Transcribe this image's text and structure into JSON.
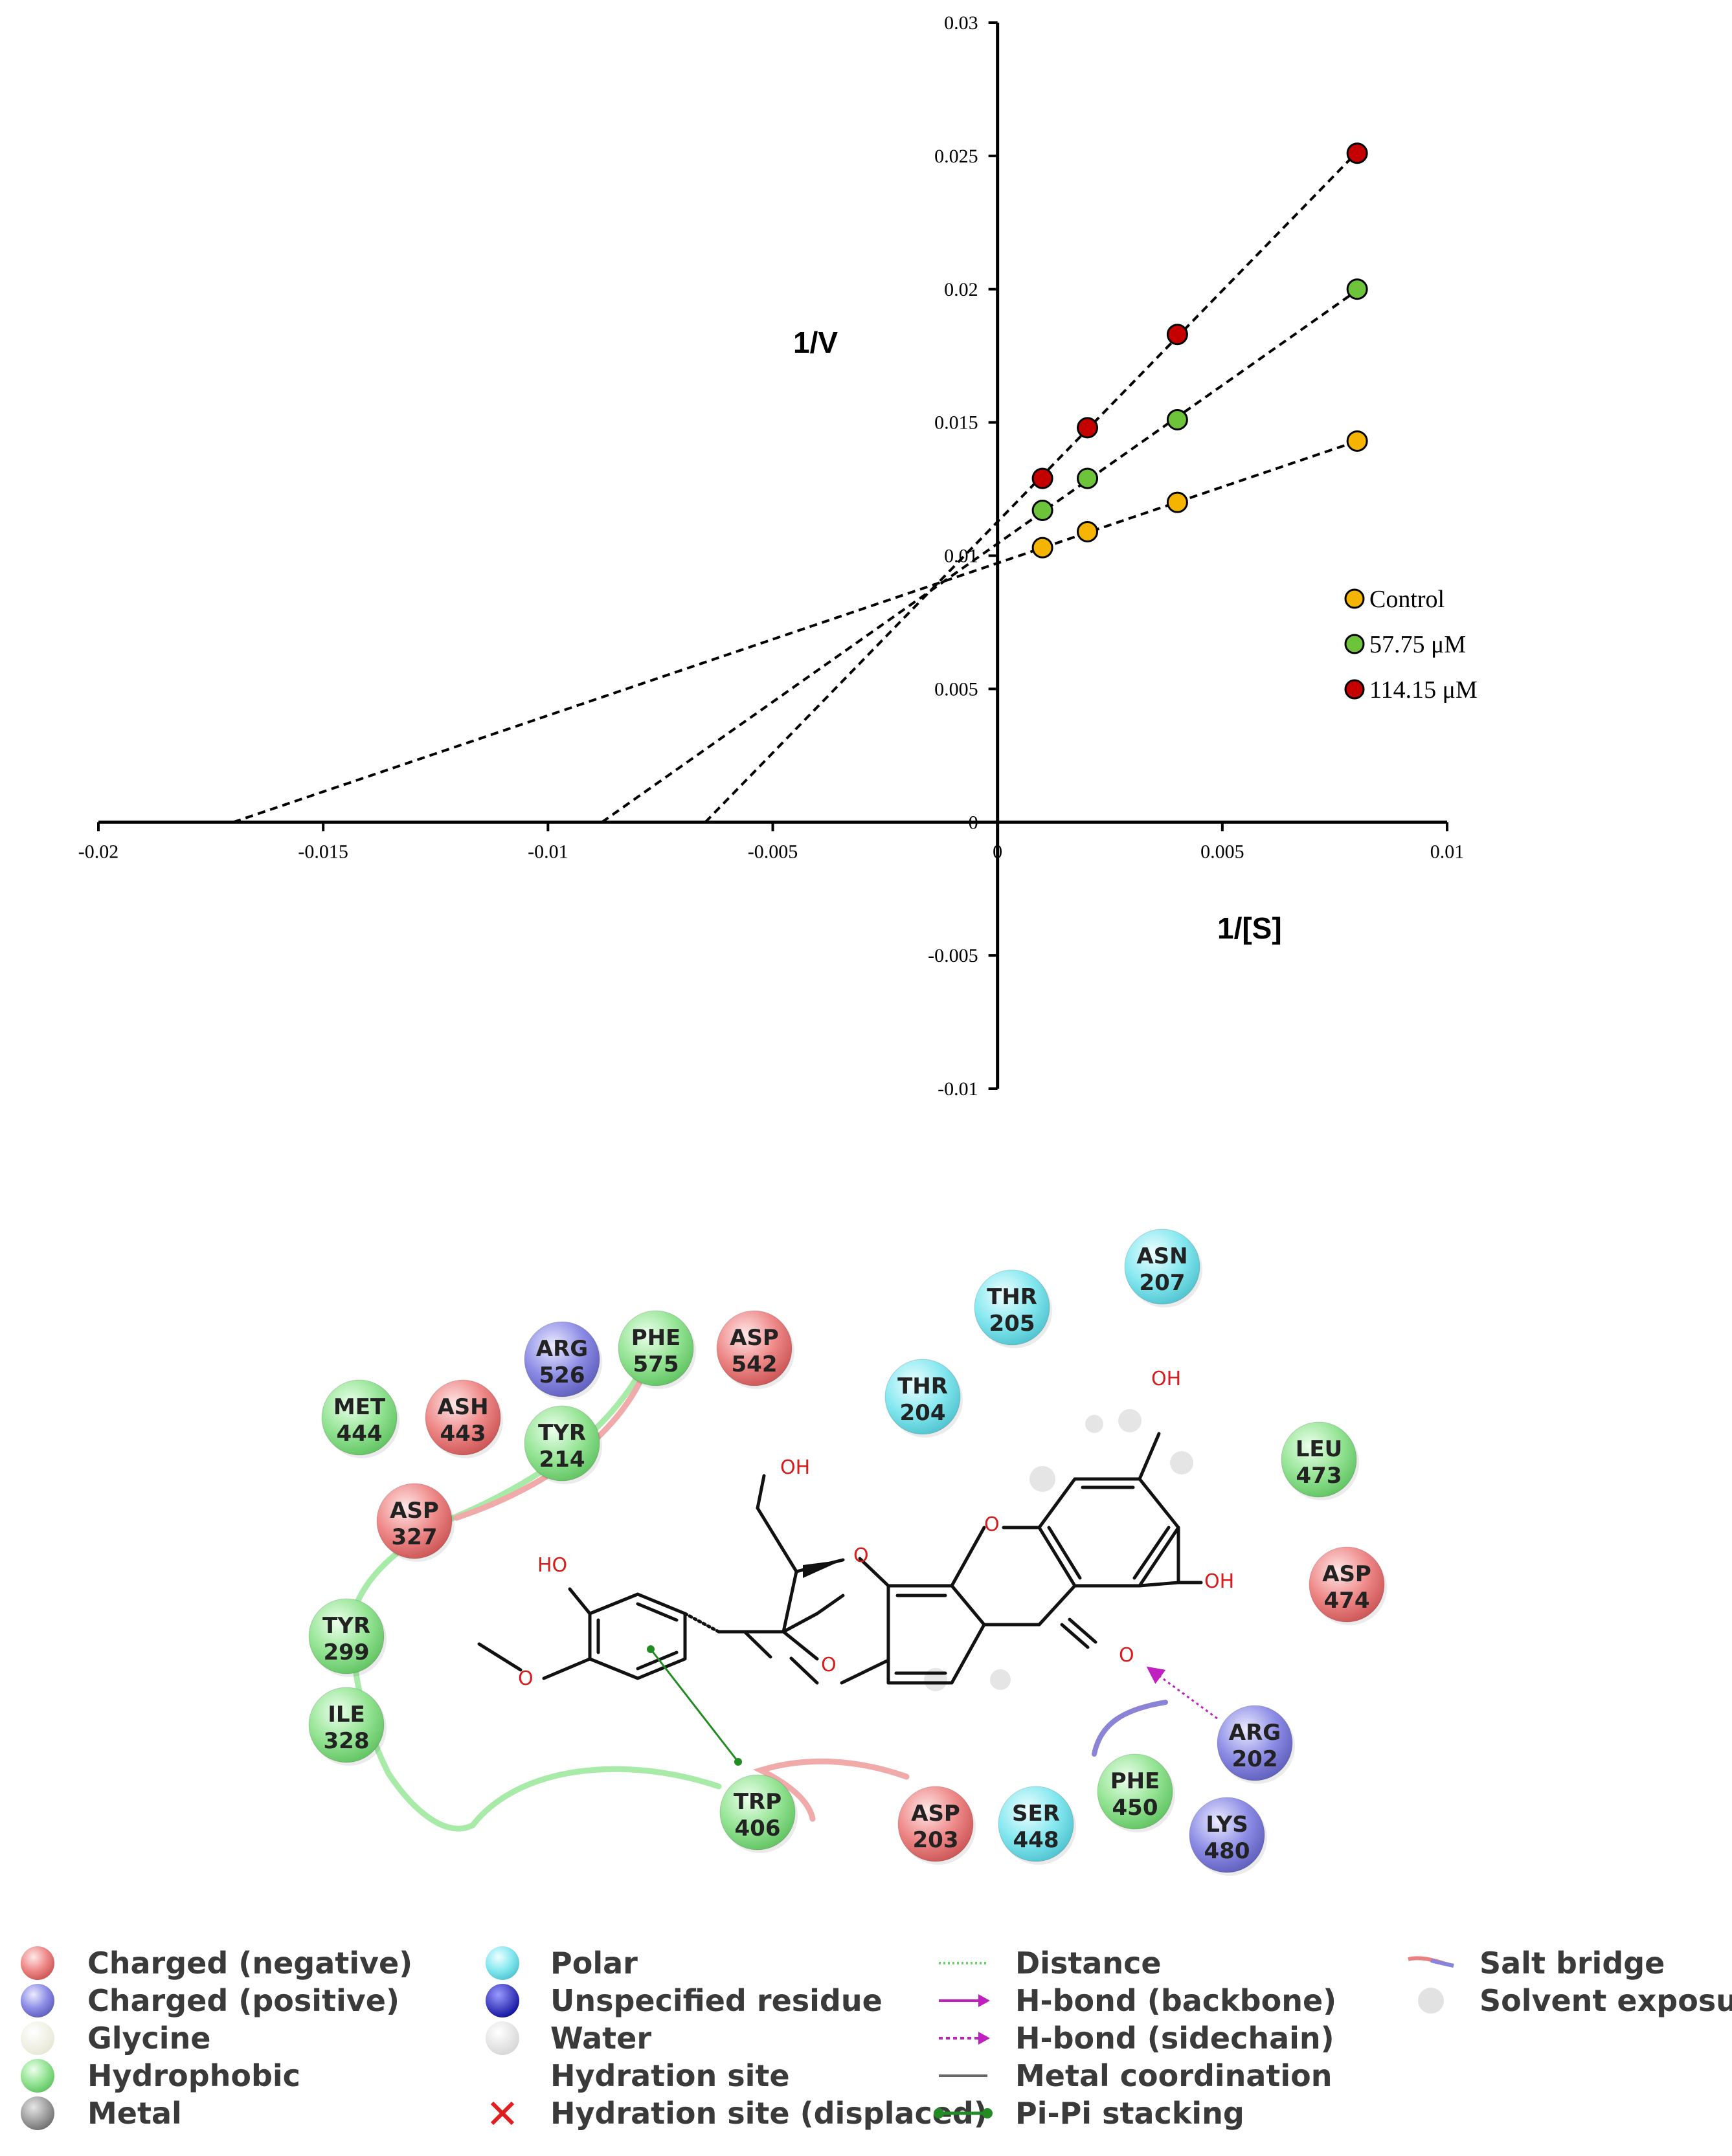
{
  "chart_data": {
    "type": "scatter",
    "title": "",
    "xlabel": "1/[S]",
    "ylabel": "1/V",
    "xlim": [
      -0.02,
      0.01
    ],
    "ylim": [
      -0.01,
      0.03
    ],
    "x_ticks": [
      "-0.02",
      "-0.015",
      "-0.01",
      "-0.005",
      "0",
      "0.005",
      "0.01"
    ],
    "y_ticks": [
      "-0.01",
      "-0.005",
      "0",
      "0.005",
      "0.01",
      "0.015",
      "0.02",
      "0.025",
      "0.03"
    ],
    "x_tick_values": [
      -0.02,
      -0.015,
      -0.01,
      -0.005,
      0,
      0.005,
      0.01
    ],
    "y_tick_values": [
      -0.01,
      -0.005,
      0,
      0.005,
      0.01,
      0.015,
      0.02,
      0.025,
      0.03
    ],
    "legend_position": "right",
    "series": [
      {
        "name": "Control",
        "color": "#f5b400",
        "x": [
          0.001,
          0.002,
          0.004,
          0.008
        ],
        "y": [
          0.0103,
          0.0109,
          0.012,
          0.0143
        ],
        "fit_from": -0.017
      },
      {
        "name": "57.75 μM",
        "color": "#6dc33a",
        "x": [
          0.001,
          0.002,
          0.004,
          0.008
        ],
        "y": [
          0.0117,
          0.0129,
          0.0151,
          0.02
        ],
        "fit_from": -0.0088
      },
      {
        "name": "114.15 μM",
        "color": "#c40000",
        "x": [
          0.001,
          0.002,
          0.004,
          0.008
        ],
        "y": [
          0.0129,
          0.0148,
          0.0183,
          0.0251
        ],
        "fit_from": -0.0065
      }
    ]
  },
  "diagram": {
    "residues": [
      {
        "name": "MET",
        "num": "444",
        "type": "hydrophobic"
      },
      {
        "name": "ASH",
        "num": "443",
        "type": "negative"
      },
      {
        "name": "ARG",
        "num": "526",
        "type": "positive"
      },
      {
        "name": "PHE",
        "num": "575",
        "type": "hydrophobic"
      },
      {
        "name": "ASP",
        "num": "542",
        "type": "negative"
      },
      {
        "name": "TYR",
        "num": "214",
        "type": "hydrophobic"
      },
      {
        "name": "ASP",
        "num": "327",
        "type": "negative"
      },
      {
        "name": "THR",
        "num": "204",
        "type": "polar"
      },
      {
        "name": "THR",
        "num": "205",
        "type": "polar"
      },
      {
        "name": "ASN",
        "num": "207",
        "type": "polar"
      },
      {
        "name": "LEU",
        "num": "473",
        "type": "hydrophobic"
      },
      {
        "name": "ASP",
        "num": "474",
        "type": "negative"
      },
      {
        "name": "TYR",
        "num": "299",
        "type": "hydrophobic"
      },
      {
        "name": "ILE",
        "num": "328",
        "type": "hydrophobic"
      },
      {
        "name": "TRP",
        "num": "406",
        "type": "hydrophobic"
      },
      {
        "name": "ASP",
        "num": "203",
        "type": "negative"
      },
      {
        "name": "SER",
        "num": "448",
        "type": "polar"
      },
      {
        "name": "PHE",
        "num": "450",
        "type": "hydrophobic"
      },
      {
        "name": "ARG",
        "num": "202",
        "type": "positive"
      },
      {
        "name": "LYS",
        "num": "480",
        "type": "positive"
      }
    ],
    "atoms": {
      "oh": "OH",
      "ho": "HO",
      "o": "O"
    },
    "colors": {
      "negative": "#e88080",
      "positive": "#8585dd",
      "polar": "#7fe3ec",
      "hydrophobic": "#8fe08f",
      "glycine": "#f3f3e6",
      "metal": "#9a9a9a",
      "unspecified": "#2a2acc",
      "water": "#e6e6e6"
    },
    "legend": {
      "col1": [
        "Charged (negative)",
        "Charged (positive)",
        "Glycine",
        "Hydrophobic",
        "Metal"
      ],
      "col2": [
        "Polar",
        "Unspecified residue",
        "Water",
        "Hydration site",
        "Hydration site (displaced)"
      ],
      "col3": [
        "Distance",
        "H-bond (backbone)",
        "H-bond (sidechain)",
        "Metal coordination",
        "Pi-Pi stacking"
      ],
      "col4": [
        "Salt bridge",
        "Solvent exposure"
      ]
    }
  }
}
